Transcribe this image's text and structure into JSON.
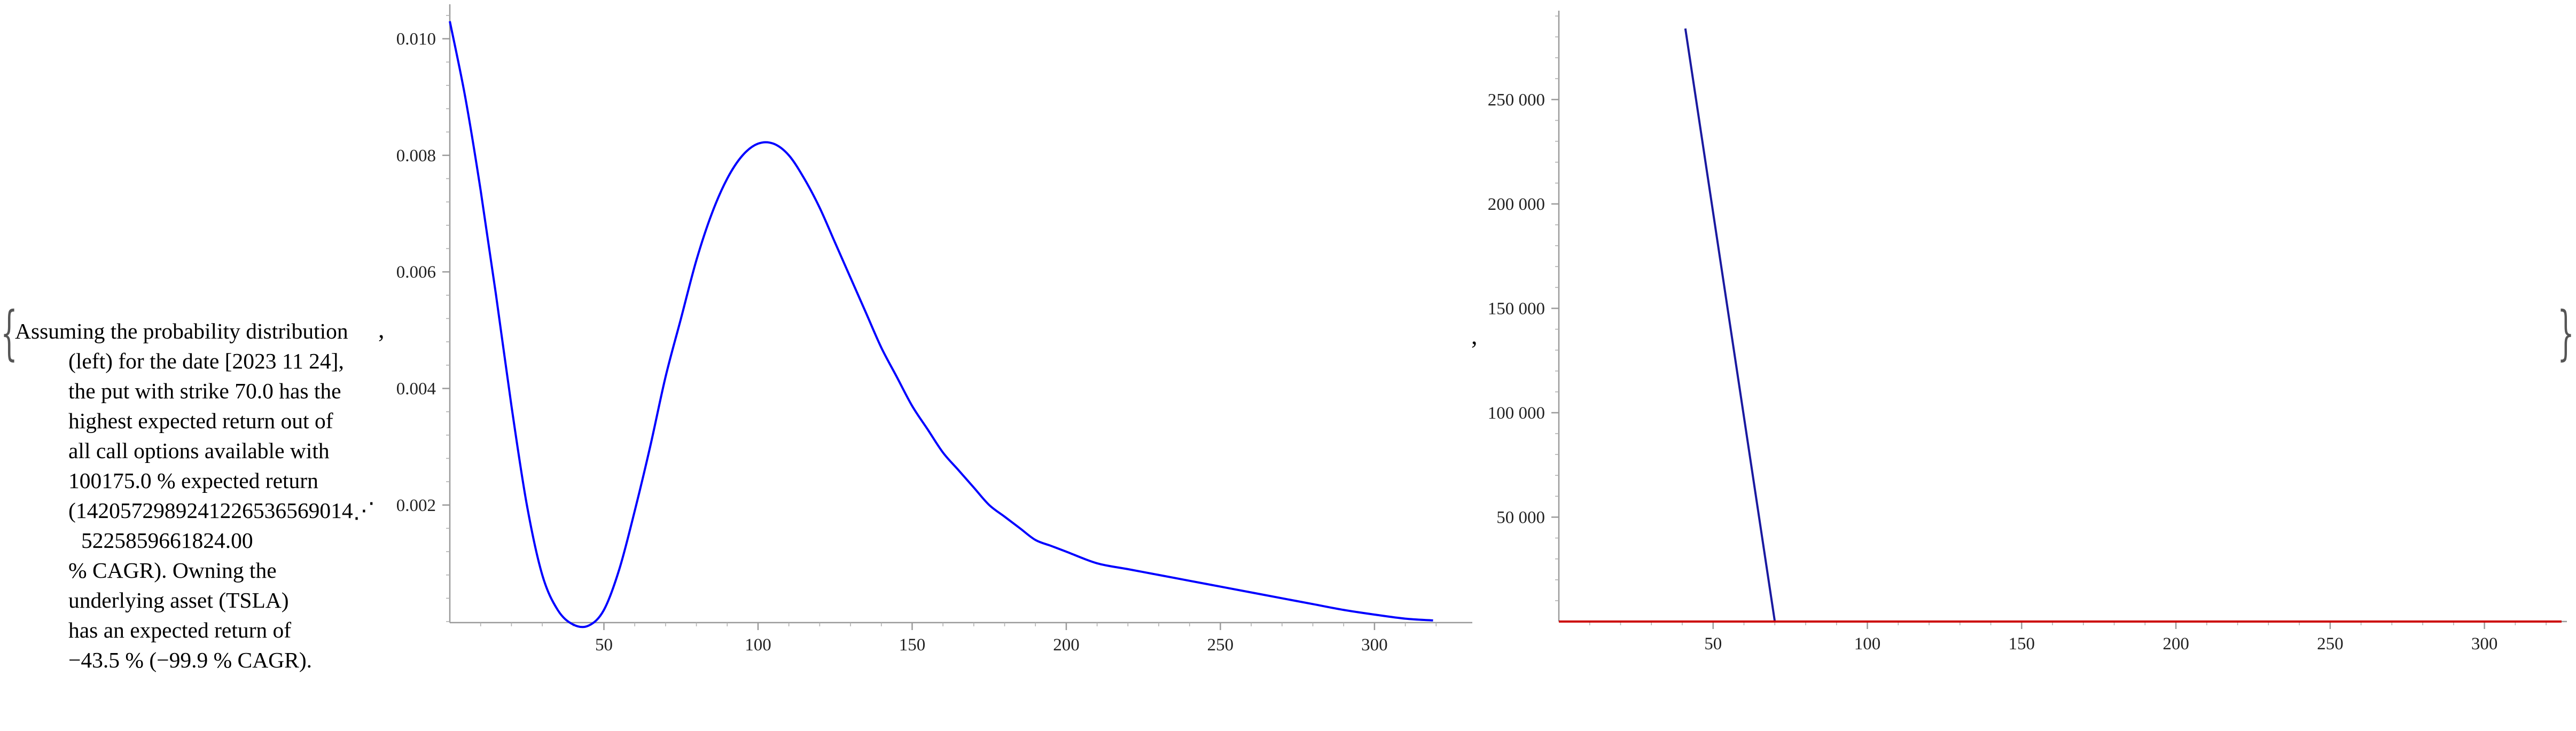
{
  "text": {
    "lines": [
      "Assuming the probability distribution",
      "(left) for the date [2023 11 24],",
      "the put with strike 70.0 has the",
      "highest expected return out of",
      "all call options available with",
      "100175.0 % expected return",
      "(1420572989241226536569014⋰",
      "5225859661824.00",
      "% CAGR). Owning the",
      "underlying asset (TSLA)",
      "has an expected return of",
      "−43.5 % (−99.9 % CAGR)."
    ],
    "open_brace": "{",
    "close_brace": "}",
    "separator": ","
  },
  "chart_data": [
    {
      "type": "line",
      "title": "",
      "xlabel": "",
      "ylabel": "",
      "xlim": [
        0,
        330
      ],
      "ylim": [
        -0.0001,
        0.0105
      ],
      "x_ticks": [
        50,
        100,
        150,
        200,
        250,
        300
      ],
      "y_ticks": [
        0.002,
        0.004,
        0.006,
        0.008,
        0.01
      ],
      "x_tick_labels": [
        "50",
        "100",
        "150",
        "200",
        "250",
        "300"
      ],
      "y_tick_labels": [
        "0.002",
        "0.004",
        "0.006",
        "0.008",
        "0.010"
      ],
      "line_color": "#0000ff",
      "series": [
        {
          "x": [
            0,
            5,
            10,
            15,
            20,
            25,
            30,
            35,
            40,
            45,
            50,
            55,
            60,
            65,
            70,
            75,
            80,
            85,
            90,
            95,
            100,
            105,
            110,
            115,
            120,
            125,
            130,
            135,
            140,
            145,
            150,
            155,
            160,
            165,
            170,
            175,
            180,
            185,
            190,
            195,
            200,
            210,
            220,
            230,
            240,
            250,
            260,
            270,
            280,
            290,
            300,
            310,
            319
          ],
          "y": [
            0.0103,
            0.009,
            0.0074,
            0.0056,
            0.0037,
            0.002,
            0.0008,
            0.0002,
            -5e-05,
            -7e-05,
            0.0002,
            0.0009,
            0.0019,
            0.003,
            0.0042,
            0.0052,
            0.0062,
            0.007,
            0.0076,
            0.008,
            0.0082,
            0.0082,
            0.008,
            0.0076,
            0.0071,
            0.0065,
            0.0059,
            0.0053,
            0.0047,
            0.0042,
            0.0037,
            0.0033,
            0.0029,
            0.0026,
            0.0023,
            0.002,
            0.0018,
            0.0016,
            0.0014,
            0.0013,
            0.0012,
            0.001,
            0.0009,
            0.0008,
            0.0007,
            0.0006,
            0.0005,
            0.0004,
            0.0003,
            0.0002,
            0.00012,
            5e-05,
            2e-05
          ]
        }
      ]
    },
    {
      "type": "line",
      "title": "",
      "xlabel": "",
      "ylabel": "",
      "xlim": [
        0,
        325
      ],
      "ylim": [
        0,
        290000
      ],
      "x_ticks": [
        50,
        100,
        150,
        200,
        250,
        300
      ],
      "y_ticks": [
        50000,
        100000,
        150000,
        200000,
        250000
      ],
      "x_tick_labels": [
        "50",
        "100",
        "150",
        "200",
        "250",
        "300"
      ],
      "y_tick_labels": [
        "50 000",
        "100 000",
        "150 000",
        "200 000",
        "250 000"
      ],
      "series": [
        {
          "color": "#1a1aa0",
          "x": [
            41,
            70,
            325
          ],
          "y": [
            284000,
            0,
            0
          ]
        },
        {
          "color": "#cc0000",
          "x": [
            0,
            325
          ],
          "y": [
            0,
            0
          ]
        }
      ]
    }
  ]
}
